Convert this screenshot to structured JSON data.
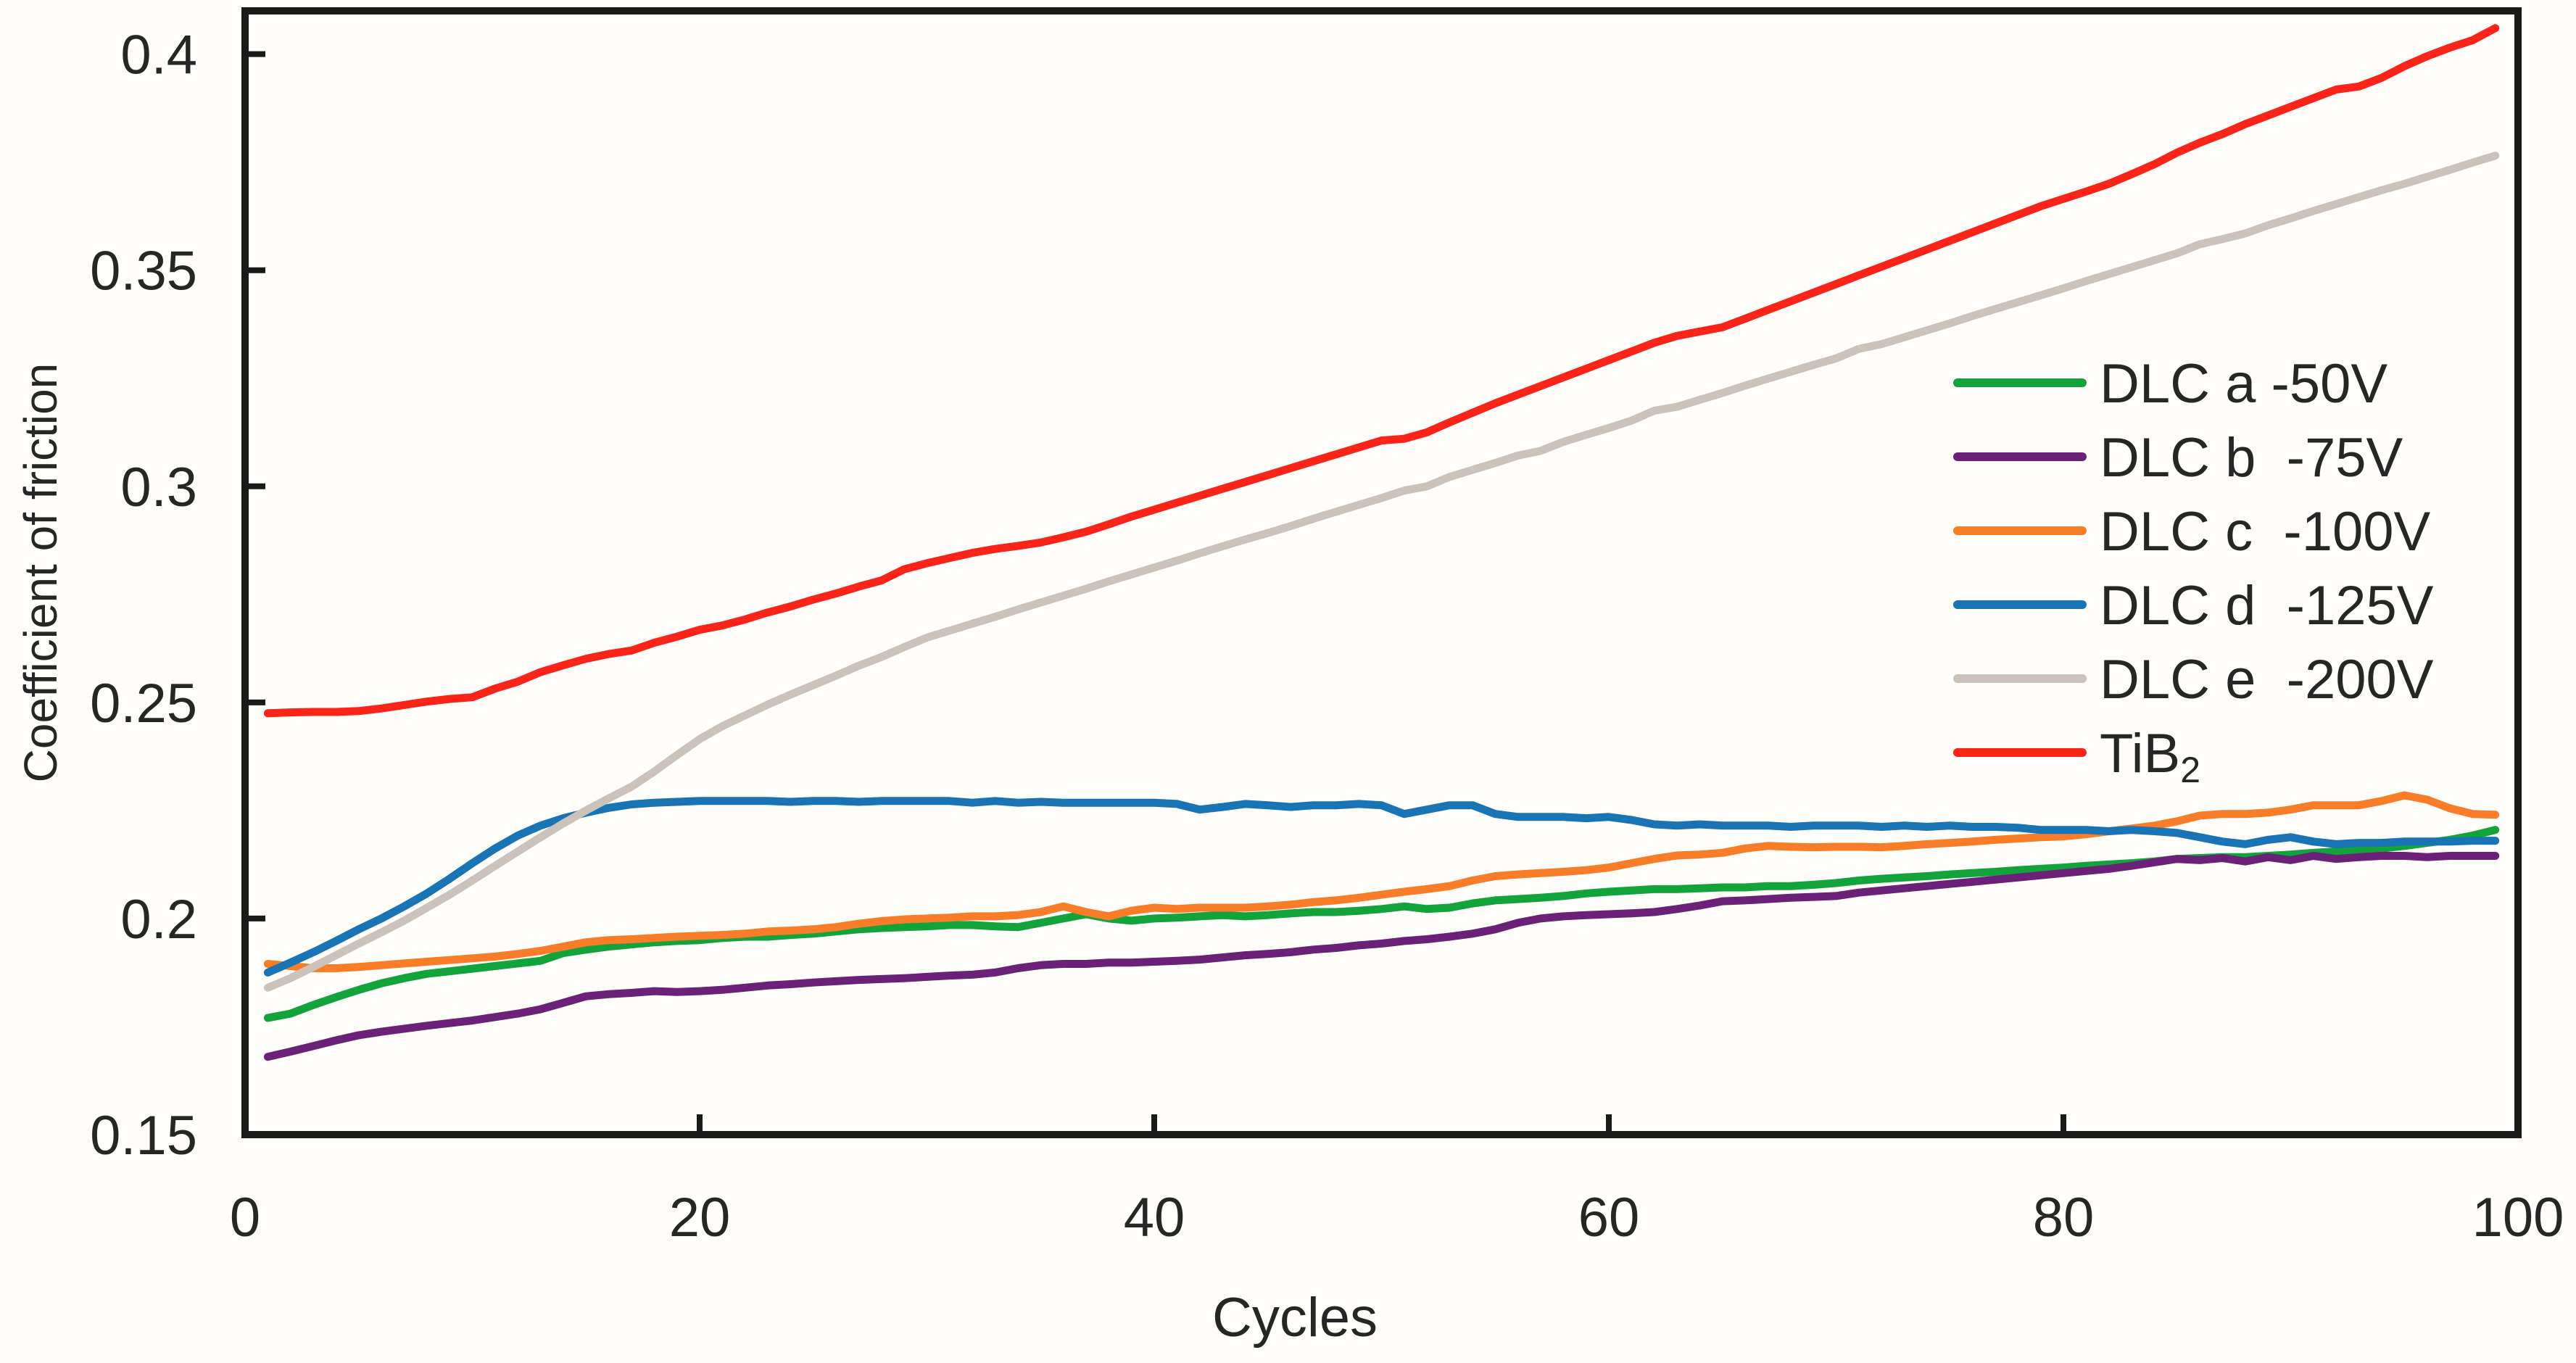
{
  "figure": {
    "background": "#fffefb",
    "axis_color": "#1a1a1a",
    "text_color": "#262626"
  },
  "chart_data": {
    "type": "line",
    "title": "",
    "xlabel": "Cycles",
    "ylabel": "Coefficient of friction",
    "xlim": [
      0,
      100
    ],
    "ylim": [
      0.15,
      0.41
    ],
    "grid": false,
    "legend_position": "inside-right",
    "x_tick_values": [
      0,
      20,
      40,
      60,
      80,
      100
    ],
    "x_tick_labels": [
      "0",
      "20",
      "40",
      "60",
      "80",
      "100"
    ],
    "y_tick_values": [
      0.15,
      0.2,
      0.25,
      0.3,
      0.35,
      0.4
    ],
    "y_tick_labels": [
      "0.15",
      "0.2",
      "0.25",
      "0.3",
      "0.35",
      "0.4"
    ],
    "x_start": 1,
    "x_step": 1,
    "series": [
      {
        "name": "DLC a -50V",
        "legend_label": "DLC a -50V",
        "color": "#12a43b",
        "values": [
          0.177,
          0.178,
          0.18,
          0.1818,
          0.1835,
          0.185,
          0.1862,
          0.1872,
          0.1878,
          0.1884,
          0.189,
          0.1896,
          0.1902,
          0.192,
          0.1928,
          0.1935,
          0.194,
          0.1945,
          0.1948,
          0.195,
          0.1955,
          0.1958,
          0.1958,
          0.1962,
          0.1965,
          0.197,
          0.1975,
          0.1978,
          0.198,
          0.1982,
          0.1985,
          0.1985,
          0.1982,
          0.198,
          0.199,
          0.2,
          0.201,
          0.2,
          0.1995,
          0.2,
          0.2002,
          0.2005,
          0.2008,
          0.2005,
          0.2008,
          0.2012,
          0.2015,
          0.2015,
          0.2018,
          0.2022,
          0.2028,
          0.2022,
          0.2025,
          0.2035,
          0.2042,
          0.2045,
          0.2048,
          0.2052,
          0.2058,
          0.2062,
          0.2065,
          0.2068,
          0.2068,
          0.207,
          0.2072,
          0.2072,
          0.2075,
          0.2075,
          0.2078,
          0.2082,
          0.2088,
          0.2092,
          0.2095,
          0.2098,
          0.2102,
          0.2105,
          0.2108,
          0.2112,
          0.2115,
          0.2118,
          0.2122,
          0.2125,
          0.2128,
          0.2132,
          0.2138,
          0.214,
          0.2142,
          0.2142,
          0.2145,
          0.2148,
          0.2152,
          0.2155,
          0.2158,
          0.2162,
          0.2168,
          0.2175,
          0.2182,
          0.2192,
          0.2205
        ]
      },
      {
        "name": "DLC b -75V",
        "legend_label": "DLC b  -75V",
        "color": "#6b2178",
        "values": [
          0.168,
          0.1692,
          0.1705,
          0.1718,
          0.173,
          0.1738,
          0.1745,
          0.1752,
          0.1758,
          0.1764,
          0.1772,
          0.178,
          0.179,
          0.1805,
          0.182,
          0.1825,
          0.1828,
          0.1832,
          0.183,
          0.1832,
          0.1835,
          0.184,
          0.1845,
          0.1848,
          0.1852,
          0.1855,
          0.1858,
          0.186,
          0.1862,
          0.1865,
          0.1868,
          0.187,
          0.1875,
          0.1885,
          0.1892,
          0.1895,
          0.1895,
          0.1898,
          0.1898,
          0.19,
          0.1902,
          0.1905,
          0.191,
          0.1915,
          0.1918,
          0.1922,
          0.1928,
          0.1932,
          0.1938,
          0.1942,
          0.1948,
          0.1952,
          0.1958,
          0.1965,
          0.1975,
          0.199,
          0.2,
          0.2005,
          0.2008,
          0.201,
          0.2012,
          0.2015,
          0.2022,
          0.203,
          0.204,
          0.2042,
          0.2045,
          0.2048,
          0.205,
          0.2052,
          0.206,
          0.2065,
          0.207,
          0.2075,
          0.208,
          0.2085,
          0.209,
          0.2095,
          0.21,
          0.2105,
          0.211,
          0.2115,
          0.2122,
          0.213,
          0.2138,
          0.2135,
          0.214,
          0.2132,
          0.2142,
          0.2135,
          0.2145,
          0.2138,
          0.2142,
          0.2145,
          0.2145,
          0.2142,
          0.2145,
          0.2145,
          0.2145
        ]
      },
      {
        "name": "DLC c -100V",
        "legend_label": "DLC c  -100V",
        "color": "#f97d28",
        "values": [
          0.1895,
          0.189,
          0.1885,
          0.1885,
          0.1888,
          0.1892,
          0.1896,
          0.19,
          0.1904,
          0.1908,
          0.1912,
          0.1918,
          0.1925,
          0.1935,
          0.1945,
          0.195,
          0.1952,
          0.1955,
          0.1958,
          0.196,
          0.1962,
          0.1965,
          0.197,
          0.1972,
          0.1975,
          0.198,
          0.1988,
          0.1994,
          0.1998,
          0.2,
          0.2002,
          0.2005,
          0.2005,
          0.2008,
          0.2015,
          0.2028,
          0.2015,
          0.2005,
          0.2018,
          0.2025,
          0.2022,
          0.2025,
          0.2025,
          0.2025,
          0.2028,
          0.2032,
          0.2038,
          0.2042,
          0.2048,
          0.2055,
          0.2062,
          0.2068,
          0.2075,
          0.2088,
          0.2098,
          0.2102,
          0.2105,
          0.2108,
          0.2112,
          0.2118,
          0.2128,
          0.2138,
          0.2146,
          0.2148,
          0.2152,
          0.2162,
          0.2168,
          0.2166,
          0.2165,
          0.2166,
          0.2166,
          0.2165,
          0.2168,
          0.2172,
          0.2175,
          0.2178,
          0.2182,
          0.2185,
          0.2188,
          0.219,
          0.2195,
          0.2202,
          0.2208,
          0.2215,
          0.2225,
          0.2238,
          0.2242,
          0.2242,
          0.2245,
          0.2252,
          0.2262,
          0.2262,
          0.2262,
          0.2272,
          0.2285,
          0.2275,
          0.2255,
          0.2242,
          0.224
        ]
      },
      {
        "name": "DLC d -125V",
        "legend_label": "DLC d  -125V",
        "color": "#1874b4",
        "values": [
          0.1875,
          0.1898,
          0.1922,
          0.1948,
          0.1975,
          0.2,
          0.2028,
          0.2058,
          0.2092,
          0.2128,
          0.2162,
          0.2192,
          0.2215,
          0.2232,
          0.2245,
          0.2256,
          0.2264,
          0.2268,
          0.227,
          0.2272,
          0.2272,
          0.2272,
          0.2272,
          0.227,
          0.2272,
          0.2272,
          0.227,
          0.2272,
          0.2272,
          0.2272,
          0.2272,
          0.2268,
          0.2272,
          0.2268,
          0.227,
          0.2268,
          0.2268,
          0.2268,
          0.2268,
          0.2268,
          0.2265,
          0.2252,
          0.2258,
          0.2265,
          0.2262,
          0.2258,
          0.2262,
          0.2262,
          0.2265,
          0.2262,
          0.2242,
          0.2252,
          0.2262,
          0.2262,
          0.2242,
          0.2235,
          0.2235,
          0.2235,
          0.2232,
          0.2235,
          0.2228,
          0.2218,
          0.2215,
          0.2218,
          0.2215,
          0.2215,
          0.2215,
          0.2212,
          0.2215,
          0.2215,
          0.2215,
          0.2212,
          0.2215,
          0.2212,
          0.2215,
          0.2212,
          0.2212,
          0.221,
          0.2205,
          0.2205,
          0.2205,
          0.2202,
          0.2205,
          0.2202,
          0.2198,
          0.2188,
          0.2178,
          0.2172,
          0.2182,
          0.2188,
          0.2178,
          0.2172,
          0.2175,
          0.2175,
          0.2178,
          0.2178,
          0.2178,
          0.218,
          0.218
        ]
      },
      {
        "name": "DLC e -200V",
        "legend_label": "DLC e  -200V",
        "color": "#ccc2bc",
        "values": [
          0.184,
          0.1862,
          0.1888,
          0.1915,
          0.1942,
          0.1968,
          0.1995,
          0.2025,
          0.2055,
          0.2088,
          0.2122,
          0.2155,
          0.2188,
          0.222,
          0.225,
          0.2278,
          0.2305,
          0.234,
          0.2378,
          0.2415,
          0.2445,
          0.247,
          0.2495,
          0.2518,
          0.254,
          0.2562,
          0.2585,
          0.2605,
          0.2628,
          0.265,
          0.2666,
          0.2682,
          0.2698,
          0.2715,
          0.2731,
          0.2747,
          0.2763,
          0.278,
          0.2796,
          0.2812,
          0.2828,
          0.2845,
          0.2861,
          0.2877,
          0.2892,
          0.2908,
          0.2925,
          0.2941,
          0.2957,
          0.2973,
          0.299,
          0.3,
          0.3022,
          0.3038,
          0.3054,
          0.3071,
          0.3082,
          0.3103,
          0.3119,
          0.3135,
          0.3152,
          0.3175,
          0.3184,
          0.32,
          0.3216,
          0.3233,
          0.3249,
          0.3265,
          0.3281,
          0.3296,
          0.3318,
          0.3329,
          0.3345,
          0.3361,
          0.3377,
          0.3394,
          0.341,
          0.3426,
          0.3442,
          0.3458,
          0.3475,
          0.3491,
          0.3507,
          0.3523,
          0.3539,
          0.356,
          0.3572,
          0.3585,
          0.3604,
          0.362,
          0.3637,
          0.3653,
          0.3669,
          0.3685,
          0.37,
          0.3716,
          0.3732,
          0.3749,
          0.3765
        ]
      },
      {
        "name": "TiB2",
        "legend_label": "TiB",
        "legend_sub": "2",
        "color": "#fa2419",
        "values": [
          0.2475,
          0.2477,
          0.2478,
          0.2478,
          0.248,
          0.2486,
          0.2494,
          0.2502,
          0.2508,
          0.2512,
          0.2532,
          0.2548,
          0.257,
          0.2586,
          0.2601,
          0.2612,
          0.262,
          0.2638,
          0.2652,
          0.2668,
          0.2678,
          0.2692,
          0.2708,
          0.2722,
          0.2738,
          0.2752,
          0.2768,
          0.2782,
          0.2808,
          0.2822,
          0.2834,
          0.2846,
          0.2855,
          0.2862,
          0.287,
          0.2882,
          0.2895,
          0.2912,
          0.293,
          0.2946,
          0.2962,
          0.2978,
          0.2994,
          0.301,
          0.3026,
          0.3042,
          0.3058,
          0.3074,
          0.309,
          0.3106,
          0.311,
          0.3125,
          0.3148,
          0.317,
          0.3192,
          0.3212,
          0.3232,
          0.3252,
          0.3272,
          0.3292,
          0.3312,
          0.3332,
          0.3348,
          0.3358,
          0.3368,
          0.3388,
          0.3408,
          0.3428,
          0.3448,
          0.3468,
          0.3488,
          0.3508,
          0.3528,
          0.3548,
          0.3568,
          0.3588,
          0.3608,
          0.3628,
          0.3648,
          0.3665,
          0.3682,
          0.37,
          0.3722,
          0.3745,
          0.3772,
          0.3795,
          0.3815,
          0.3838,
          0.3858,
          0.3878,
          0.3898,
          0.3918,
          0.3925,
          0.3945,
          0.3972,
          0.3995,
          0.4015,
          0.4032,
          0.406
        ]
      }
    ]
  }
}
